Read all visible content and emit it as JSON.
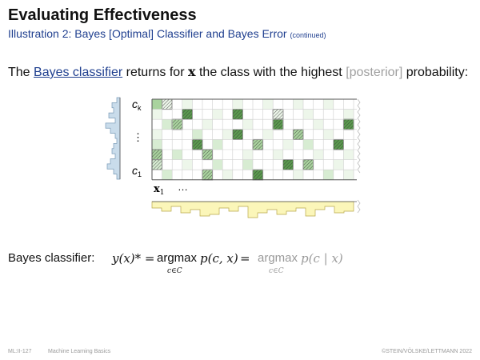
{
  "title": "Evaluating Effectiveness",
  "subtitle": {
    "main": "Illustration 2:  Bayes [Optimal] Classifier and Bayes Error",
    "continued": "(continued)"
  },
  "sentence": {
    "part1": "The ",
    "link": "Bayes classifier",
    "part2": " returns for ",
    "var": "x",
    "part3": " the class with the highest ",
    "grey": "[posterior]",
    "part4": " probability:"
  },
  "figure": {
    "label_ck": "c",
    "label_ck_sub": "k",
    "label_dots_v": "⋮",
    "label_c1": "c",
    "label_c1_sub": "1",
    "label_x1": "x",
    "label_x1_sub": "1",
    "label_dots_h": "…",
    "colors": {
      "green_dark": "#5a9a4e",
      "green_mid": "#a9d39e",
      "green_light": "#d7ecd2",
      "green_faint": "#edf6ea",
      "blue_hist": "#c9dceb",
      "yellow_hist": "#fbf6b9"
    }
  },
  "formula": {
    "label": "Bayes classifier:",
    "lhs": "y(x)* =",
    "argmax1": "argmax",
    "p1": "p(c, x)",
    "eq": "=",
    "argmax2": "argmax",
    "p2": "p(c | x)",
    "sub1": "c∈C",
    "sub2": "c∈C"
  },
  "footer": {
    "left_page": "ML:II-127",
    "left_course": "Machine Learning Basics",
    "right": "©STEIN/VÖLSKE/LETTMANN 2022"
  }
}
